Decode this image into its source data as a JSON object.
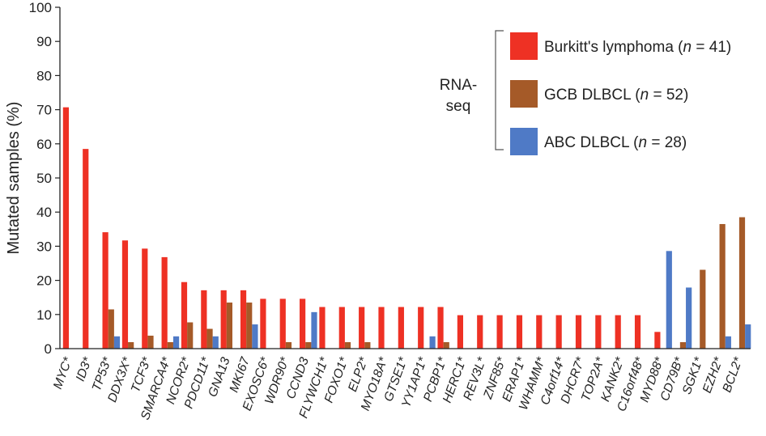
{
  "chart_data": {
    "type": "bar",
    "title": "",
    "ylabel": "Mutated samples (%)",
    "xlabel": "",
    "ylim": [
      0,
      100
    ],
    "yticks": [
      "0",
      "10",
      "20",
      "30",
      "40",
      "50",
      "60",
      "70",
      "80",
      "90",
      "100"
    ],
    "categories": [
      "MYC*",
      "ID3*",
      "TP53*",
      "DDX3X*",
      "TCF3*",
      "SMARCA4*",
      "NCOR2*",
      "PDCD11*",
      "GNA13",
      "MKI67",
      "EXOSC6*",
      "WDR90*",
      "CCND3",
      "FLYWCH1*",
      "FOXO1*",
      "ELP2*",
      "MYO18A*",
      "GTSE1*",
      "YY1AP1*",
      "PCBP1*",
      "HERC1*",
      "REV3L*",
      "ZNF85*",
      "ERAP1*",
      "WHAMM*",
      "C4orf14*",
      "DHCR7*",
      "TOP2A*",
      "KANK2*",
      "C16orf48*",
      "MYD88*",
      "CD79B*",
      "SGK1*",
      "EZH2*",
      "BCL2*"
    ],
    "series": [
      {
        "name": "Burkitt's lymphoma",
        "n_label": "n",
        "n_value": "= 41",
        "color": "#ee3124",
        "values": [
          70.7,
          58.5,
          34.1,
          31.7,
          29.3,
          26.8,
          19.5,
          17.1,
          17.1,
          17.1,
          14.6,
          14.6,
          14.6,
          12.2,
          12.2,
          12.2,
          12.2,
          12.2,
          12.2,
          12.2,
          9.8,
          9.8,
          9.8,
          9.8,
          9.8,
          9.8,
          9.8,
          9.8,
          9.8,
          9.8,
          4.9,
          0,
          0,
          0,
          0
        ]
      },
      {
        "name": "GCB DLBCL",
        "n_label": "n",
        "n_value": "= 52",
        "color": "#a55a28",
        "values": [
          0,
          0,
          11.5,
          1.9,
          3.8,
          1.9,
          7.7,
          5.8,
          13.5,
          13.5,
          0,
          1.9,
          1.9,
          0,
          1.9,
          1.9,
          0,
          0,
          0,
          1.9,
          0,
          0,
          0,
          0,
          0,
          0,
          0,
          0,
          0,
          0,
          0,
          1.9,
          23.1,
          36.5,
          38.5
        ]
      },
      {
        "name": "ABC DLBCL",
        "n_label": "n",
        "n_value": "= 28",
        "color": "#4f7ac6",
        "values": [
          0,
          0,
          3.6,
          0,
          0,
          3.6,
          0,
          3.6,
          0,
          7.1,
          0,
          0,
          10.7,
          0,
          0,
          0,
          0,
          0,
          3.6,
          0,
          0,
          0,
          0,
          0,
          0,
          0,
          0,
          0,
          0,
          0,
          28.6,
          17.9,
          0,
          3.6,
          7.1
        ]
      }
    ],
    "legend_group_label": [
      "RNA-",
      "seq"
    ],
    "legend_position": "top-right",
    "grid": false
  }
}
